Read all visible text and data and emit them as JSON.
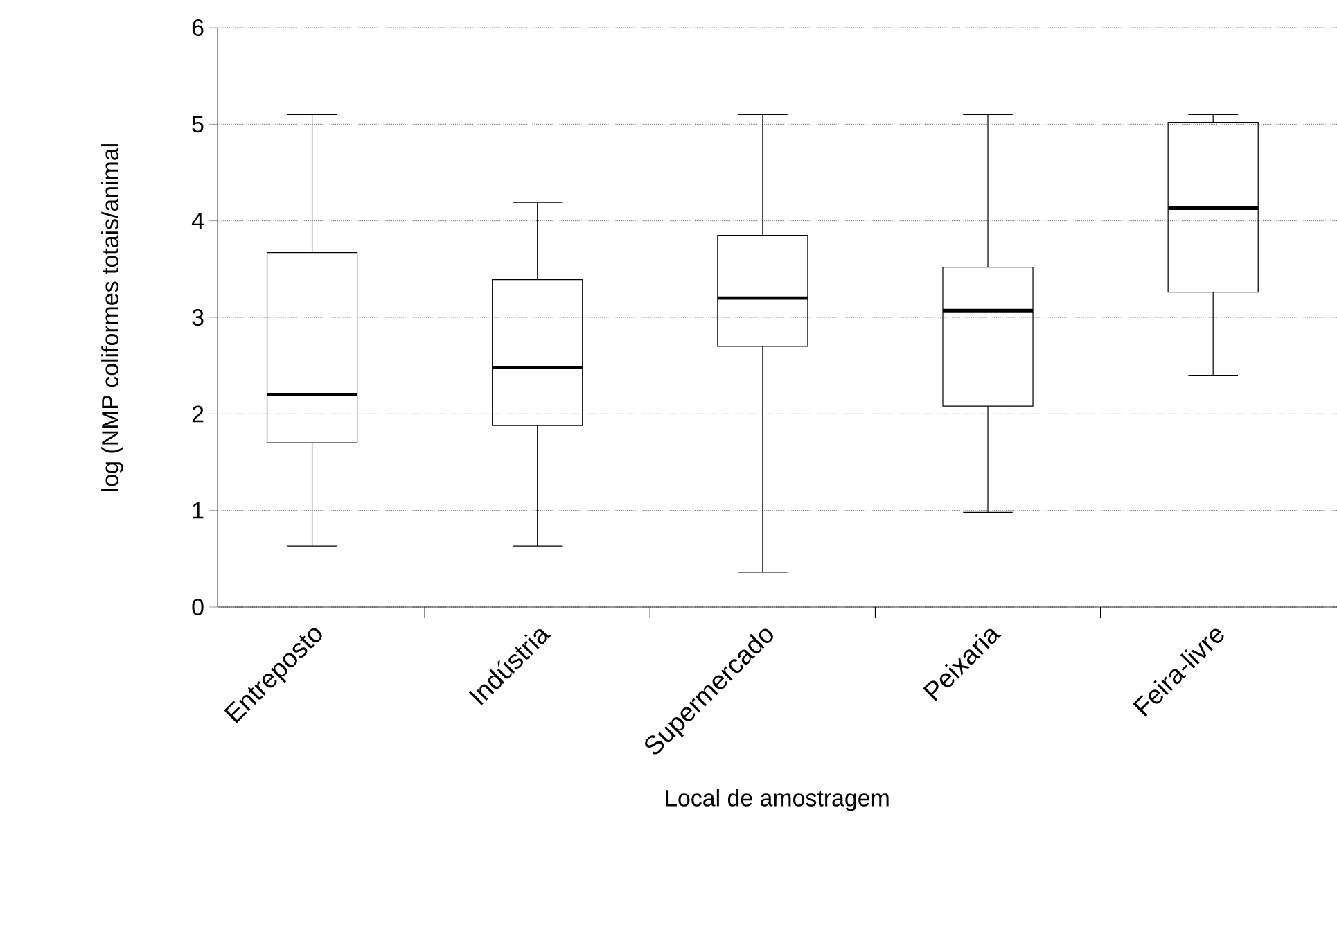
{
  "chart_data": {
    "type": "box",
    "xlabel": "Local de amostragem",
    "ylabel": "log (NMP coliformes totais/animal",
    "categories": [
      "Entreposto",
      "Indústria",
      "Supermercado",
      "Peixaria",
      "Feira-livre"
    ],
    "boxes": [
      {
        "low": 0.63,
        "q1": 1.7,
        "median": 2.2,
        "q3": 3.67,
        "high": 5.1
      },
      {
        "low": 0.63,
        "q1": 1.88,
        "median": 2.48,
        "q3": 3.39,
        "high": 4.19
      },
      {
        "low": 0.36,
        "q1": 2.7,
        "median": 3.2,
        "q3": 3.85,
        "high": 5.1
      },
      {
        "low": 0.98,
        "q1": 2.08,
        "median": 3.07,
        "q3": 3.52,
        "high": 5.1
      },
      {
        "low": 2.4,
        "q1": 3.26,
        "median": 4.13,
        "q3": 5.02,
        "high": 5.1
      }
    ],
    "ylim": [
      0,
      6
    ],
    "yticks": [
      0,
      1,
      2,
      3,
      4,
      5,
      6
    ],
    "grid": "y"
  }
}
